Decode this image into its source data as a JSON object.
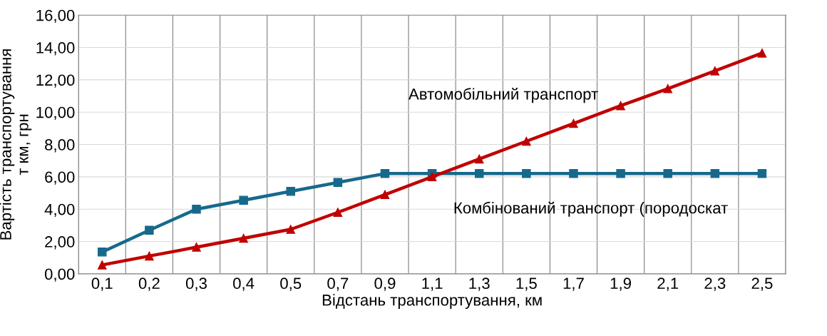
{
  "chart_data": {
    "type": "line",
    "xlabel": "Відстань транспортування, км",
    "ylabel": "Вартість транспортування\nт км, грн",
    "categories": [
      "0,1",
      "0,2",
      "0,3",
      "0,4",
      "0,5",
      "0,7",
      "0,9",
      "1,1",
      "1,3",
      "1,5",
      "1,7",
      "1,9",
      "2,1",
      "2,3",
      "2,5"
    ],
    "series": [
      {
        "name": "Комбінований транспорт (породоскат",
        "color": "#17698c",
        "marker": "square",
        "values": [
          1.35,
          2.7,
          4.0,
          4.55,
          5.1,
          5.65,
          6.2,
          6.2,
          6.2,
          6.2,
          6.2,
          6.2,
          6.2,
          6.2,
          6.2
        ]
      },
      {
        "name": "Автомобільний транспорт",
        "color": "#c00000",
        "marker": "triangle",
        "values": [
          0.55,
          1.1,
          1.65,
          2.2,
          2.75,
          3.8,
          4.9,
          6.0,
          7.1,
          8.2,
          9.3,
          10.4,
          11.45,
          12.55,
          13.65
        ]
      }
    ],
    "ylim": [
      0,
      16
    ],
    "yticks": [
      {
        "value": 0,
        "label": "0,00"
      },
      {
        "value": 2,
        "label": "2,00"
      },
      {
        "value": 4,
        "label": "4,00"
      },
      {
        "value": 6,
        "label": "6,00"
      },
      {
        "value": 8,
        "label": "8,00"
      },
      {
        "value": 10,
        "label": "10,00"
      },
      {
        "value": 12,
        "label": "12,00"
      },
      {
        "value": 14,
        "label": "14,00"
      },
      {
        "value": 16,
        "label": "16,00"
      }
    ],
    "grid": true,
    "legend": false
  }
}
